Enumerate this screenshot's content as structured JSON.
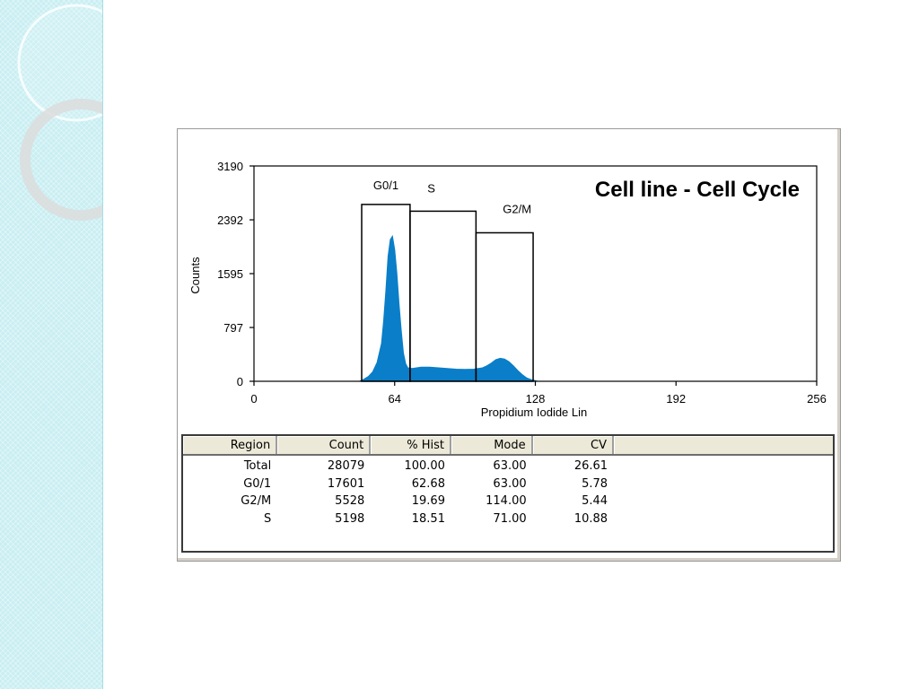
{
  "colors": {
    "histogram_fill": "#0a7ec8",
    "sidebar_bg": "#c8eef2",
    "axis": "#000000"
  },
  "chart_data": {
    "type": "area",
    "title": "Cell line - Cell Cycle",
    "xlabel": "Propidium Iodide Lin",
    "ylabel": "Counts",
    "xlim": [
      0,
      256
    ],
    "ylim": [
      0,
      3190
    ],
    "x_ticks": [
      "0",
      "64",
      "128",
      "192",
      "256"
    ],
    "y_ticks": [
      "0",
      "797",
      "1595",
      "2392",
      "3190"
    ],
    "series": [
      {
        "x": [
          48,
          50,
          52,
          54,
          56,
          58,
          59,
          60,
          61,
          62,
          63,
          64,
          65,
          66,
          67,
          68,
          69,
          70,
          72,
          74,
          76,
          80,
          84,
          88,
          92,
          96,
          100,
          104,
          106,
          108,
          110,
          112,
          114,
          116,
          118,
          120,
          122,
          124,
          126,
          128,
          129
        ],
        "y": [
          0,
          30,
          70,
          140,
          280,
          560,
          900,
          1350,
          1850,
          2100,
          2150,
          1950,
          1600,
          1150,
          750,
          420,
          260,
          200,
          190,
          200,
          210,
          210,
          200,
          190,
          180,
          175,
          180,
          200,
          230,
          270,
          320,
          340,
          330,
          290,
          230,
          160,
          100,
          50,
          25,
          10,
          0
        ]
      }
    ],
    "regions": [
      {
        "label": "G0/1",
        "x_start": 49,
        "x_end": 71,
        "height": 2620
      },
      {
        "label": "S",
        "x_start": 71,
        "x_end": 101,
        "height": 2520
      },
      {
        "label": "G2/M",
        "x_start": 101,
        "x_end": 127,
        "height": 2200
      }
    ]
  },
  "stats_table": {
    "columns": [
      "Region",
      "Count",
      "% Hist",
      "Mode",
      "CV"
    ],
    "rows": [
      [
        "Total",
        "28079",
        "100.00",
        "63.00",
        "26.61"
      ],
      [
        "G0/1",
        "17601",
        "62.68",
        "63.00",
        "5.78"
      ],
      [
        "G2/M",
        "5528",
        "19.69",
        "114.00",
        "5.44"
      ],
      [
        "S",
        "5198",
        "18.51",
        "71.00",
        "10.88"
      ]
    ]
  }
}
